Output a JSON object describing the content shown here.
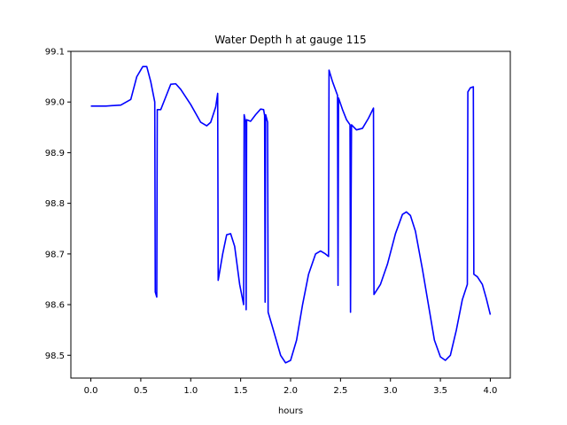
{
  "chart_data": {
    "type": "line",
    "title": "Water Depth h at gauge 115",
    "xlabel": "hours",
    "ylabel": "",
    "xlim": [
      -0.2,
      4.2
    ],
    "ylim": [
      98.455,
      99.1
    ],
    "grid": false,
    "legend": "none",
    "xticks": [
      0.0,
      0.5,
      1.0,
      1.5,
      2.0,
      2.5,
      3.0,
      3.5,
      4.0
    ],
    "xtick_labels": [
      "0.0",
      "0.5",
      "1.0",
      "1.5",
      "2.0",
      "2.5",
      "3.0",
      "3.5",
      "4.0"
    ],
    "yticks": [
      98.5,
      98.6,
      98.7,
      98.8,
      98.9,
      99.0,
      99.1
    ],
    "ytick_labels": [
      "98.5",
      "98.6",
      "98.7",
      "98.8",
      "98.9",
      "99.0",
      "99.1"
    ],
    "series": [
      {
        "color": "#0000ff",
        "points": [
          [
            0.0,
            98.992
          ],
          [
            0.15,
            98.992
          ],
          [
            0.3,
            98.994
          ],
          [
            0.4,
            99.005
          ],
          [
            0.46,
            99.05
          ],
          [
            0.52,
            99.07
          ],
          [
            0.56,
            99.07
          ],
          [
            0.6,
            99.04
          ],
          [
            0.64,
            99.0
          ],
          [
            0.645,
            98.625
          ],
          [
            0.66,
            98.615
          ],
          [
            0.665,
            98.985
          ],
          [
            0.7,
            98.985
          ],
          [
            0.75,
            99.01
          ],
          [
            0.8,
            99.035
          ],
          [
            0.85,
            99.036
          ],
          [
            0.9,
            99.025
          ],
          [
            1.0,
            98.995
          ],
          [
            1.1,
            98.96
          ],
          [
            1.16,
            98.953
          ],
          [
            1.2,
            98.96
          ],
          [
            1.25,
            98.99
          ],
          [
            1.27,
            99.017
          ],
          [
            1.275,
            98.648
          ],
          [
            1.32,
            98.7
          ],
          [
            1.36,
            98.738
          ],
          [
            1.4,
            98.74
          ],
          [
            1.44,
            98.715
          ],
          [
            1.49,
            98.64
          ],
          [
            1.53,
            98.6
          ],
          [
            1.535,
            98.975
          ],
          [
            1.55,
            98.96
          ],
          [
            1.555,
            98.59
          ],
          [
            1.56,
            98.965
          ],
          [
            1.6,
            98.962
          ],
          [
            1.65,
            98.975
          ],
          [
            1.7,
            98.986
          ],
          [
            1.73,
            98.985
          ],
          [
            1.74,
            98.973
          ],
          [
            1.745,
            98.605
          ],
          [
            1.75,
            98.975
          ],
          [
            1.77,
            98.96
          ],
          [
            1.775,
            98.585
          ],
          [
            1.82,
            98.555
          ],
          [
            1.9,
            98.5
          ],
          [
            1.95,
            98.485
          ],
          [
            2.0,
            98.49
          ],
          [
            2.06,
            98.53
          ],
          [
            2.12,
            98.6
          ],
          [
            2.18,
            98.66
          ],
          [
            2.25,
            98.7
          ],
          [
            2.3,
            98.706
          ],
          [
            2.35,
            98.7
          ],
          [
            2.38,
            98.695
          ],
          [
            2.385,
            99.063
          ],
          [
            2.42,
            99.04
          ],
          [
            2.47,
            99.013
          ],
          [
            2.475,
            98.638
          ],
          [
            2.48,
            99.008
          ],
          [
            2.52,
            98.985
          ],
          [
            2.56,
            98.965
          ],
          [
            2.595,
            98.955
          ],
          [
            2.6,
            98.585
          ],
          [
            2.61,
            98.955
          ],
          [
            2.66,
            98.945
          ],
          [
            2.72,
            98.948
          ],
          [
            2.78,
            98.968
          ],
          [
            2.83,
            98.988
          ],
          [
            2.835,
            98.62
          ],
          [
            2.9,
            98.64
          ],
          [
            2.97,
            98.68
          ],
          [
            3.05,
            98.74
          ],
          [
            3.12,
            98.778
          ],
          [
            3.16,
            98.783
          ],
          [
            3.2,
            98.776
          ],
          [
            3.25,
            98.745
          ],
          [
            3.32,
            98.67
          ],
          [
            3.38,
            98.6
          ],
          [
            3.44,
            98.53
          ],
          [
            3.5,
            98.497
          ],
          [
            3.55,
            98.49
          ],
          [
            3.6,
            98.5
          ],
          [
            3.66,
            98.55
          ],
          [
            3.72,
            98.61
          ],
          [
            3.77,
            98.64
          ],
          [
            3.775,
            99.02
          ],
          [
            3.8,
            99.028
          ],
          [
            3.83,
            99.03
          ],
          [
            3.835,
            98.66
          ],
          [
            3.87,
            98.655
          ],
          [
            3.92,
            98.64
          ],
          [
            3.96,
            98.612
          ],
          [
            4.0,
            98.58
          ]
        ]
      }
    ]
  }
}
